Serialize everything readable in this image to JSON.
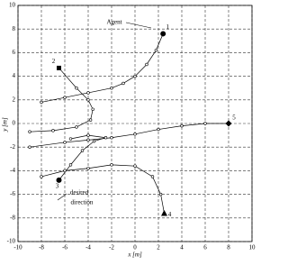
{
  "chart_data": {
    "type": "trajectory",
    "xlabel": "x [m]",
    "ylabel": "y [m]",
    "xlim": [
      -10,
      10
    ],
    "ylim": [
      -10,
      10
    ],
    "xticks": [
      -10,
      -8,
      -6,
      -4,
      -2,
      0,
      2,
      4,
      6,
      8,
      10
    ],
    "yticks": [
      -10,
      -8,
      -6,
      -4,
      -2,
      0,
      2,
      4,
      6,
      8,
      10
    ],
    "grid": true,
    "color": "#000000",
    "annotations": [
      "Agent",
      "desired",
      "direction"
    ],
    "series": [
      {
        "name": "1",
        "marker": "circle",
        "marker_at": "end",
        "x": [
          -8,
          -6,
          -4,
          -2,
          -1,
          0,
          1,
          1.8,
          2.4
        ],
        "y": [
          1.8,
          2.2,
          2.6,
          3.0,
          3.4,
          4.0,
          5.0,
          6.2,
          7.6
        ]
      },
      {
        "name": "2",
        "marker": "square",
        "marker_at": "start",
        "x": [
          -6.5,
          -5,
          -4,
          -3.6,
          -3.8,
          -5,
          -7,
          -9
        ],
        "y": [
          4.7,
          3,
          2,
          1.2,
          0.3,
          -0.3,
          -0.6,
          -0.7
        ]
      },
      {
        "name": "5",
        "marker": "diamond",
        "marker_at": "start",
        "x": [
          8,
          6,
          4,
          2,
          0,
          -2,
          -4,
          -6,
          -9
        ],
        "y": [
          0,
          0,
          -0.2,
          -0.5,
          -0.9,
          -1.2,
          -1.4,
          -1.6,
          -2
        ]
      },
      {
        "name": "3",
        "marker": "circle",
        "marker_at": "start",
        "x": [
          -6.5,
          -5.5,
          -4.5,
          -3.5,
          -2.5,
          -4,
          -5.5
        ],
        "y": [
          -4.8,
          -3.5,
          -2.3,
          -1.5,
          -1.2,
          -1.0,
          -1.3
        ]
      },
      {
        "name": "4",
        "marker": "triangle",
        "marker_at": "end",
        "x": [
          -8,
          -6,
          -4,
          -2,
          0,
          1.5,
          2.2,
          2.5
        ],
        "y": [
          -4.5,
          -4,
          -3.8,
          -3.5,
          -3.6,
          -4.5,
          -6,
          -7.6
        ]
      }
    ]
  }
}
